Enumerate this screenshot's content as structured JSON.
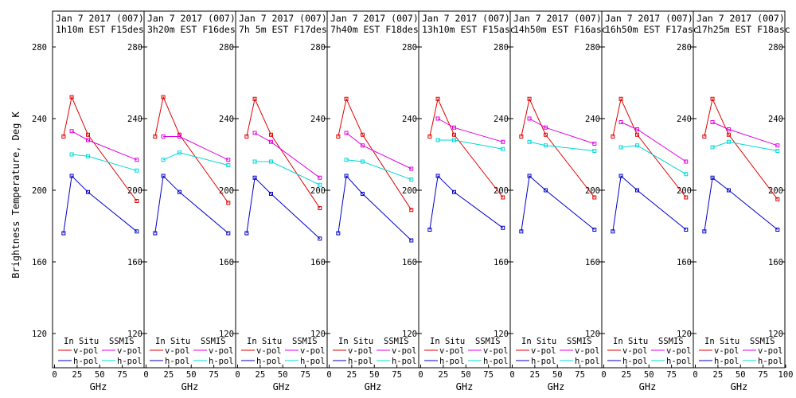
{
  "ylabel": "Brightness Temperature, Deg K",
  "xlabel": "GHz",
  "colors": {
    "insitu_v": "#e00000",
    "insitu_h": "#0000c8",
    "ssmis_v": "#e000e0",
    "ssmis_h": "#00d8d8",
    "axis": "#000000"
  },
  "legend": {
    "insitu_header": "In Situ",
    "ssmis_header": "SSMIS",
    "v_label": "v-pol",
    "h_label": "h-pol"
  },
  "chart_data": {
    "type": "line",
    "ylabel": "Brightness Temperature, Deg K",
    "xlabel": "GHz",
    "xlim": [
      0,
      100
    ],
    "ylim": [
      105,
      300
    ],
    "yticks": [
      120,
      160,
      200,
      240,
      280
    ],
    "yticks_left": [
      120,
      160,
      200,
      240,
      280
    ],
    "xticks": [
      0,
      25,
      50,
      75
    ],
    "xticks_last": [
      0,
      25,
      50,
      75,
      100
    ],
    "panels": [
      {
        "title_line1": "Jan 7 2017 (007)",
        "title_line2": "1h10m EST F15des",
        "series": [
          {
            "key": "insitu_v",
            "x": [
              10,
              19,
              37,
              91
            ],
            "y": [
              230,
              252,
              231,
              194
            ]
          },
          {
            "key": "insitu_h",
            "x": [
              10,
              19,
              37,
              91
            ],
            "y": [
              176,
              208,
              199,
              177
            ]
          },
          {
            "key": "ssmis_v",
            "x": [
              19,
              37,
              91
            ],
            "y": [
              233,
              228,
              217
            ]
          },
          {
            "key": "ssmis_h",
            "x": [
              19,
              37,
              91
            ],
            "y": [
              220,
              219,
              211
            ]
          }
        ]
      },
      {
        "title_line1": "Jan 7 2017 (007)",
        "title_line2": "3h20m EST F16des",
        "series": [
          {
            "key": "insitu_v",
            "x": [
              10,
              19,
              37,
              91
            ],
            "y": [
              230,
              252,
              231,
              193
            ]
          },
          {
            "key": "insitu_h",
            "x": [
              10,
              19,
              37,
              91
            ],
            "y": [
              176,
              208,
              199,
              176
            ]
          },
          {
            "key": "ssmis_v",
            "x": [
              19,
              37,
              91
            ],
            "y": [
              230,
              230,
              217
            ]
          },
          {
            "key": "ssmis_h",
            "x": [
              19,
              37,
              91
            ],
            "y": [
              217,
              221,
              214
            ]
          }
        ]
      },
      {
        "title_line1": "Jan 7 2017 (007)",
        "title_line2": "7h 5m EST F17des",
        "series": [
          {
            "key": "insitu_v",
            "x": [
              10,
              19,
              37,
              91
            ],
            "y": [
              230,
              251,
              231,
              190
            ]
          },
          {
            "key": "insitu_h",
            "x": [
              10,
              19,
              37,
              91
            ],
            "y": [
              176,
              207,
              198,
              173
            ]
          },
          {
            "key": "ssmis_v",
            "x": [
              19,
              37,
              91
            ],
            "y": [
              232,
              227,
              207
            ]
          },
          {
            "key": "ssmis_h",
            "x": [
              19,
              37,
              91
            ],
            "y": [
              216,
              216,
              203
            ]
          }
        ]
      },
      {
        "title_line1": "Jan 7 2017 (007)",
        "title_line2": "7h40m EST F18des",
        "series": [
          {
            "key": "insitu_v",
            "x": [
              10,
              19,
              37,
              91
            ],
            "y": [
              230,
              251,
              231,
              189
            ]
          },
          {
            "key": "insitu_h",
            "x": [
              10,
              19,
              37,
              91
            ],
            "y": [
              176,
              208,
              198,
              172
            ]
          },
          {
            "key": "ssmis_v",
            "x": [
              19,
              37,
              91
            ],
            "y": [
              232,
              225,
              212
            ]
          },
          {
            "key": "ssmis_h",
            "x": [
              19,
              37,
              91
            ],
            "y": [
              217,
              216,
              206
            ]
          }
        ]
      },
      {
        "title_line1": "Jan 7 2017 (007)",
        "title_line2": "13h10m EST F15asc",
        "series": [
          {
            "key": "insitu_v",
            "x": [
              10,
              19,
              37,
              91
            ],
            "y": [
              230,
              251,
              231,
              196
            ]
          },
          {
            "key": "insitu_h",
            "x": [
              10,
              19,
              37,
              91
            ],
            "y": [
              178,
              208,
              199,
              179
            ]
          },
          {
            "key": "ssmis_v",
            "x": [
              19,
              37,
              91
            ],
            "y": [
              240,
              235,
              227
            ]
          },
          {
            "key": "ssmis_h",
            "x": [
              19,
              37,
              91
            ],
            "y": [
              228,
              228,
              223
            ]
          }
        ]
      },
      {
        "title_line1": "Jan 7 2017 (007)",
        "title_line2": "14h50m EST F16asc",
        "series": [
          {
            "key": "insitu_v",
            "x": [
              10,
              19,
              37,
              91
            ],
            "y": [
              230,
              251,
              231,
              196
            ]
          },
          {
            "key": "insitu_h",
            "x": [
              10,
              19,
              37,
              91
            ],
            "y": [
              177,
              208,
              200,
              178
            ]
          },
          {
            "key": "ssmis_v",
            "x": [
              19,
              37,
              91
            ],
            "y": [
              240,
              235,
              226
            ]
          },
          {
            "key": "ssmis_h",
            "x": [
              19,
              37,
              91
            ],
            "y": [
              227,
              225,
              222
            ]
          }
        ]
      },
      {
        "title_line1": "Jan 7 2017 (007)",
        "title_line2": "16h50m EST F17asc",
        "series": [
          {
            "key": "insitu_v",
            "x": [
              10,
              19,
              37,
              91
            ],
            "y": [
              230,
              251,
              231,
              196
            ]
          },
          {
            "key": "insitu_h",
            "x": [
              10,
              19,
              37,
              91
            ],
            "y": [
              177,
              208,
              200,
              178
            ]
          },
          {
            "key": "ssmis_v",
            "x": [
              19,
              37,
              91
            ],
            "y": [
              238,
              234,
              216
            ]
          },
          {
            "key": "ssmis_h",
            "x": [
              19,
              37,
              91
            ],
            "y": [
              224,
              225,
              209
            ]
          }
        ]
      },
      {
        "title_line1": "Jan 7 2017 (007)",
        "title_line2": "17h25m EST F18asc",
        "series": [
          {
            "key": "insitu_v",
            "x": [
              10,
              19,
              37,
              91
            ],
            "y": [
              230,
              251,
              231,
              195
            ]
          },
          {
            "key": "insitu_h",
            "x": [
              10,
              19,
              37,
              91
            ],
            "y": [
              177,
              207,
              200,
              178
            ]
          },
          {
            "key": "ssmis_v",
            "x": [
              19,
              37,
              91
            ],
            "y": [
              238,
              234,
              225
            ]
          },
          {
            "key": "ssmis_h",
            "x": [
              19,
              37,
              91
            ],
            "y": [
              224,
              227,
              222
            ]
          }
        ]
      }
    ]
  }
}
